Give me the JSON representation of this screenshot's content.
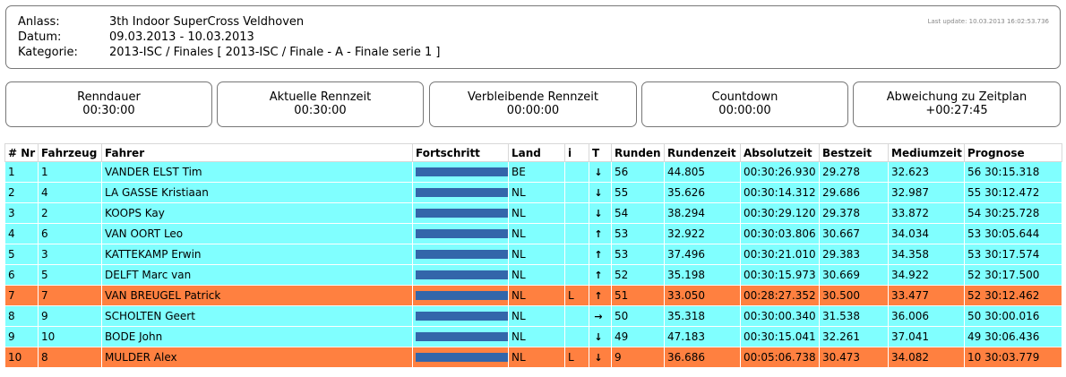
{
  "header": {
    "rows": [
      {
        "label": "Anlass:",
        "value": "3th Indoor SuperCross Veldhoven"
      },
      {
        "label": "Datum:",
        "value": "09.03.2013 - 10.03.2013"
      },
      {
        "label": "Kategorie:",
        "value": "2013-ISC / Finales [ 2013-ISC / Finale - A - Finale serie 1 ]"
      }
    ],
    "last_update": "Last update: 10.03.2013 16:02:53.736"
  },
  "stats": [
    {
      "label": "Renndauer",
      "value": "00:30:00"
    },
    {
      "label": "Aktuelle Rennzeit",
      "value": "00:30:00"
    },
    {
      "label": "Verbleibende Rennzeit",
      "value": "00:00:00"
    },
    {
      "label": "Countdown",
      "value": "00:00:00"
    },
    {
      "label": "Abweichung zu Zeitplan",
      "value": "+00:27:45"
    }
  ],
  "table": {
    "columns": [
      "# Nr",
      "Fahrzeug",
      "Fahrer",
      "Fortschritt",
      "Land",
      "i",
      "T",
      "Runden",
      "Rundenzeit",
      "Absolutzeit",
      "Bestzeit",
      "Mediumzeit",
      "Prognose"
    ],
    "rows": [
      {
        "pos": "1",
        "nr": "1",
        "driver": "VANDER ELST Tim",
        "progress": 1.0,
        "land": "BE",
        "i": "",
        "trend": "down",
        "laps": "56",
        "lap_time": "44.805",
        "abs_time": "00:30:26.930",
        "best": "29.278",
        "medium": "32.623",
        "prognose": "56 30:15.318",
        "highlight": false
      },
      {
        "pos": "2",
        "nr": "4",
        "driver": "LA GASSE Kristiaan",
        "progress": 1.0,
        "land": "NL",
        "i": "",
        "trend": "down",
        "laps": "55",
        "lap_time": "35.626",
        "abs_time": "00:30:14.312",
        "best": "29.686",
        "medium": "32.987",
        "prognose": "55 30:12.472",
        "highlight": false
      },
      {
        "pos": "3",
        "nr": "2",
        "driver": "KOOPS Kay",
        "progress": 1.0,
        "land": "NL",
        "i": "",
        "trend": "down",
        "laps": "54",
        "lap_time": "38.294",
        "abs_time": "00:30:29.120",
        "best": "29.378",
        "medium": "33.872",
        "prognose": "54 30:25.728",
        "highlight": false
      },
      {
        "pos": "4",
        "nr": "6",
        "driver": "VAN OORT Leo",
        "progress": 1.0,
        "land": "NL",
        "i": "",
        "trend": "up",
        "laps": "53",
        "lap_time": "32.922",
        "abs_time": "00:30:03.806",
        "best": "30.667",
        "medium": "34.034",
        "prognose": "53 30:05.644",
        "highlight": false
      },
      {
        "pos": "5",
        "nr": "3",
        "driver": "KATTEKAMP Erwin",
        "progress": 1.0,
        "land": "NL",
        "i": "",
        "trend": "up",
        "laps": "53",
        "lap_time": "37.496",
        "abs_time": "00:30:21.010",
        "best": "29.383",
        "medium": "34.358",
        "prognose": "53 30:17.574",
        "highlight": false
      },
      {
        "pos": "6",
        "nr": "5",
        "driver": "DELFT Marc van",
        "progress": 1.0,
        "land": "NL",
        "i": "",
        "trend": "up",
        "laps": "52",
        "lap_time": "35.198",
        "abs_time": "00:30:15.973",
        "best": "30.669",
        "medium": "34.922",
        "prognose": "52 30:17.500",
        "highlight": false
      },
      {
        "pos": "7",
        "nr": "7",
        "driver": "VAN BREUGEL Patrick",
        "progress": 1.0,
        "land": "NL",
        "i": "L",
        "trend": "up",
        "laps": "51",
        "lap_time": "33.050",
        "abs_time": "00:28:27.352",
        "best": "30.500",
        "medium": "33.477",
        "prognose": "52 30:12.462",
        "highlight": true
      },
      {
        "pos": "8",
        "nr": "9",
        "driver": "SCHOLTEN Geert",
        "progress": 1.0,
        "land": "NL",
        "i": "",
        "trend": "right",
        "laps": "50",
        "lap_time": "35.318",
        "abs_time": "00:30:00.340",
        "best": "31.538",
        "medium": "36.006",
        "prognose": "50 30:00.016",
        "highlight": false
      },
      {
        "pos": "9",
        "nr": "10",
        "driver": "BODE John",
        "progress": 1.0,
        "land": "NL",
        "i": "",
        "trend": "down",
        "laps": "49",
        "lap_time": "47.183",
        "abs_time": "00:30:15.041",
        "best": "32.261",
        "medium": "37.041",
        "prognose": "49 30:06.436",
        "highlight": false
      },
      {
        "pos": "10",
        "nr": "8",
        "driver": "MULDER Alex",
        "progress": 1.0,
        "land": "NL",
        "i": "L",
        "trend": "down",
        "laps": "9",
        "lap_time": "36.686",
        "abs_time": "00:05:06.738",
        "best": "30.473",
        "medium": "34.082",
        "prognose": "10 30:03.779",
        "highlight": true
      }
    ]
  },
  "colors": {
    "row_normal": "#80ffff",
    "row_highlight": "#ff8040",
    "progress_bar": "#3366aa"
  },
  "trend_icons": {
    "up": "arrow-up-icon",
    "down": "arrow-down-icon",
    "right": "arrow-right-icon"
  }
}
